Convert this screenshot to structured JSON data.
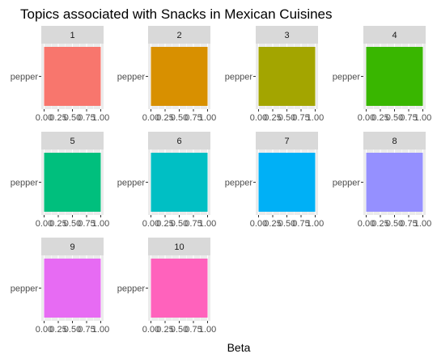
{
  "chart_data": {
    "type": "bar",
    "orientation": "horizontal",
    "faceted": true,
    "title": "Topics associated with Snacks in Mexican Cuisines",
    "xlabel": "Beta",
    "ylabel": "",
    "xlim": [
      0,
      1
    ],
    "x_ticks": [
      "0.00",
      "0.25",
      "0.50",
      "0.75",
      "1.00"
    ],
    "x_tick_values": [
      0,
      0.25,
      0.5,
      0.75,
      1
    ],
    "grid": true,
    "legend": "none",
    "panels": [
      {
        "topic": "1",
        "term": "pepper",
        "beta": 1.0,
        "color": "#F8766D"
      },
      {
        "topic": "2",
        "term": "pepper",
        "beta": 1.0,
        "color": "#D89000"
      },
      {
        "topic": "3",
        "term": "pepper",
        "beta": 1.0,
        "color": "#A3A500"
      },
      {
        "topic": "4",
        "term": "pepper",
        "beta": 1.0,
        "color": "#39B600"
      },
      {
        "topic": "5",
        "term": "pepper",
        "beta": 1.0,
        "color": "#00BF7D"
      },
      {
        "topic": "6",
        "term": "pepper",
        "beta": 1.0,
        "color": "#00BFC4"
      },
      {
        "topic": "7",
        "term": "pepper",
        "beta": 1.0,
        "color": "#00B0F6"
      },
      {
        "topic": "8",
        "term": "pepper",
        "beta": 1.0,
        "color": "#9590FF"
      },
      {
        "topic": "9",
        "term": "pepper",
        "beta": 1.0,
        "color": "#E76BF3"
      },
      {
        "topic": "10",
        "term": "pepper",
        "beta": 1.0,
        "color": "#FF62BC"
      }
    ]
  }
}
